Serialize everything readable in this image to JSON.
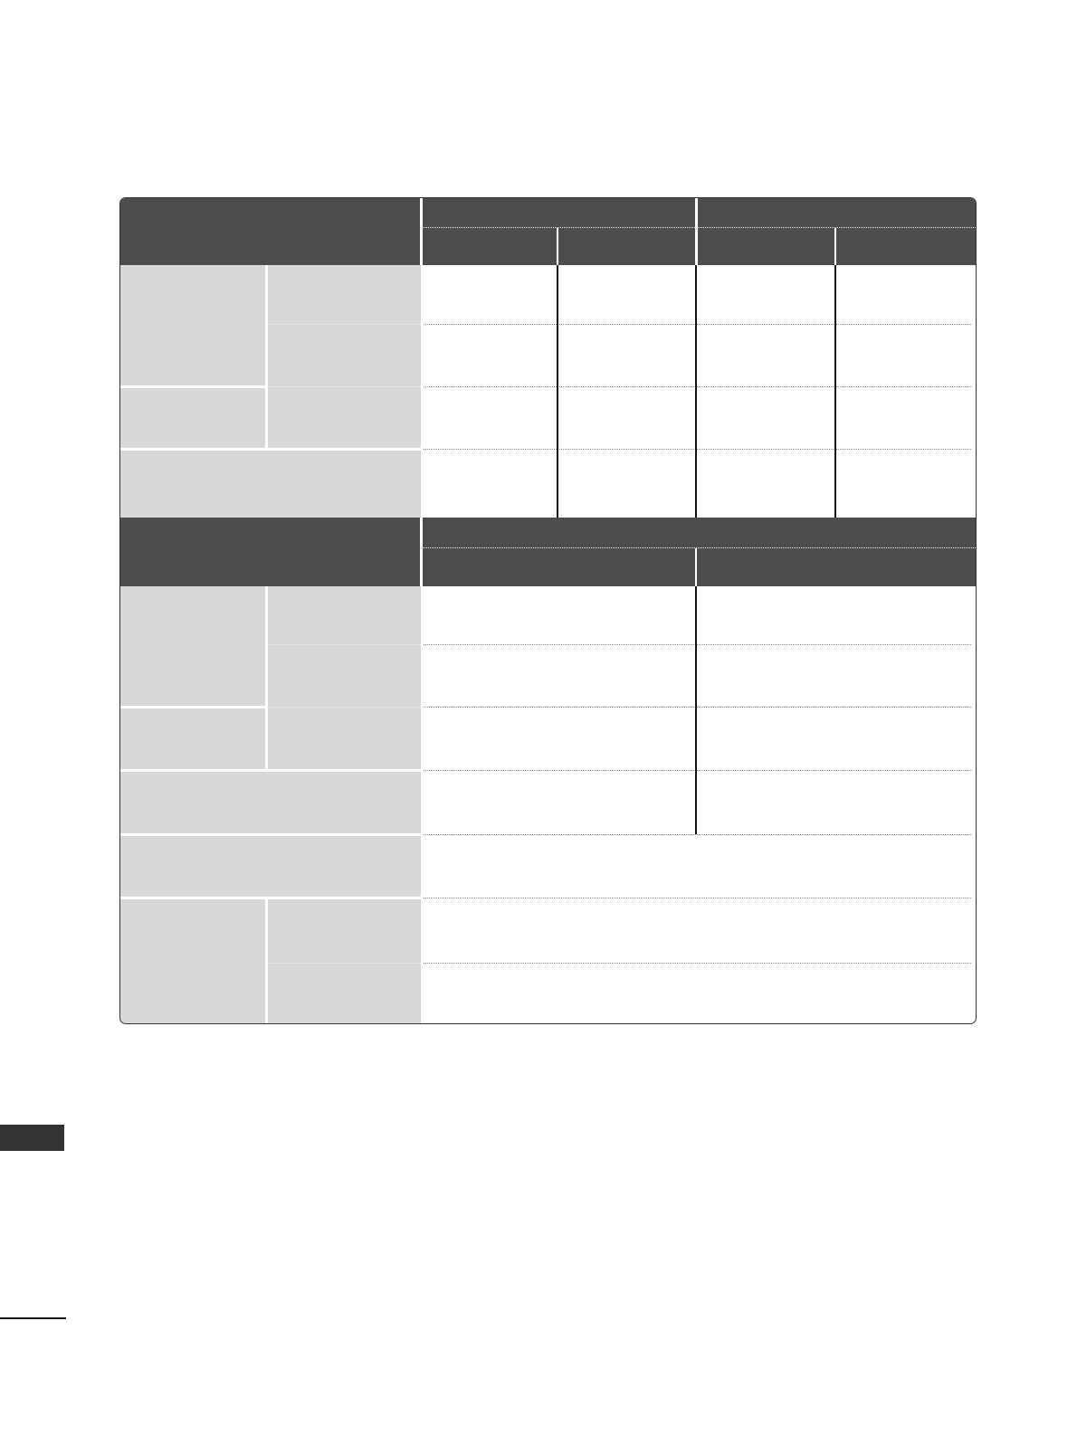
{
  "colors": {
    "header": "#4d4d4d",
    "row_label": "#d8d8d8",
    "side_tab": "#333333",
    "rule": "#111111"
  },
  "table1": {
    "header": {
      "group_1": "",
      "group_2": "",
      "sub": [
        "",
        "",
        "",
        ""
      ]
    }
  },
  "table2": {
    "header": {
      "group": "",
      "sub": [
        "",
        ""
      ]
    }
  },
  "side_tab": {
    "label": ""
  }
}
